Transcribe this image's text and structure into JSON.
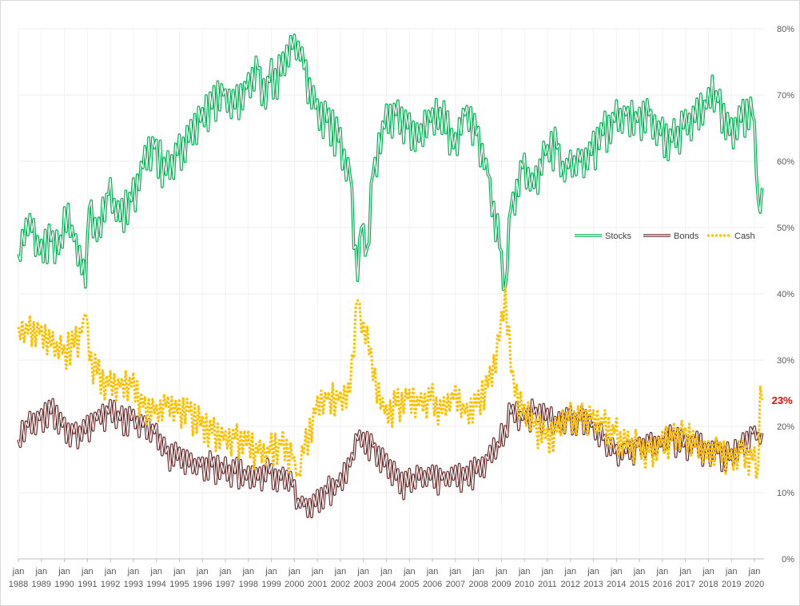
{
  "chart_data": {
    "type": "line",
    "x_start": "1988-01",
    "x_end": "2020-06",
    "x_step": "month",
    "ylim": [
      0,
      80
    ],
    "y_ticks": [
      0,
      10,
      20,
      30,
      40,
      50,
      60,
      70,
      80
    ],
    "y_tick_labels": [
      "0%",
      "10%",
      "20%",
      "30%",
      "40%",
      "50%",
      "60%",
      "70%",
      "80%"
    ],
    "y_axis_side": "right",
    "grid": true,
    "x_tick_labels": [
      {
        "month": "jan",
        "year": "1988"
      },
      {
        "month": "jan",
        "year": "1989"
      },
      {
        "month": "jan",
        "year": "1990"
      },
      {
        "month": "jan",
        "year": "1991"
      },
      {
        "month": "jan",
        "year": "1992"
      },
      {
        "month": "jan",
        "year": "1993"
      },
      {
        "month": "jan",
        "year": "1994"
      },
      {
        "month": "jan",
        "year": "1995"
      },
      {
        "month": "jan",
        "year": "1996"
      },
      {
        "month": "jan",
        "year": "1997"
      },
      {
        "month": "jan",
        "year": "1998"
      },
      {
        "month": "jan",
        "year": "1999"
      },
      {
        "month": "jan",
        "year": "2000"
      },
      {
        "month": "jan",
        "year": "2001"
      },
      {
        "month": "jan",
        "year": "2002"
      },
      {
        "month": "jan",
        "year": "2003"
      },
      {
        "month": "jan",
        "year": "2004"
      },
      {
        "month": "jan",
        "year": "2005"
      },
      {
        "month": "jan",
        "year": "2006"
      },
      {
        "month": "jan",
        "year": "2007"
      },
      {
        "month": "jan",
        "year": "2008"
      },
      {
        "month": "jan",
        "year": "2009"
      },
      {
        "month": "jan",
        "year": "2010"
      },
      {
        "month": "jan",
        "year": "2011"
      },
      {
        "month": "jan",
        "year": "2012"
      },
      {
        "month": "jan",
        "year": "2013"
      },
      {
        "month": "jan",
        "year": "2014"
      },
      {
        "month": "jan",
        "year": "2015"
      },
      {
        "month": "jan",
        "year": "2016"
      },
      {
        "month": "jan",
        "year": "2017"
      },
      {
        "month": "jan",
        "year": "2018"
      },
      {
        "month": "jan",
        "year": "2019"
      },
      {
        "month": "jan",
        "year": "2020"
      }
    ],
    "series": [
      {
        "name": "Stocks",
        "color": "#00b050",
        "style": "double",
        "anchors": [
          [
            "1988-01",
            46
          ],
          [
            "1988-07",
            52
          ],
          [
            "1988-12",
            46
          ],
          [
            "1989-06",
            48
          ],
          [
            "1989-12",
            47
          ],
          [
            "1990-01",
            53
          ],
          [
            "1990-06",
            48
          ],
          [
            "1990-10",
            43
          ],
          [
            "1990-12",
            41
          ],
          [
            "1991-02",
            53
          ],
          [
            "1991-06",
            48
          ],
          [
            "1991-12",
            55
          ],
          [
            "1992-06",
            51
          ],
          [
            "1992-12",
            54
          ],
          [
            "1993-06",
            59
          ],
          [
            "1993-12",
            62
          ],
          [
            "1994-06",
            58
          ],
          [
            "1994-12",
            61
          ],
          [
            "1995-06",
            63
          ],
          [
            "1995-12",
            66
          ],
          [
            "1996-06",
            68
          ],
          [
            "1996-12",
            70
          ],
          [
            "1997-06",
            68
          ],
          [
            "1997-12",
            71
          ],
          [
            "1998-06",
            74
          ],
          [
            "1998-10",
            68
          ],
          [
            "1998-12",
            72
          ],
          [
            "1999-06",
            73
          ],
          [
            "1999-12",
            77
          ],
          [
            "2000-03",
            78
          ],
          [
            "2000-06",
            74
          ],
          [
            "2000-12",
            68
          ],
          [
            "2001-06",
            66
          ],
          [
            "2001-12",
            63
          ],
          [
            "2002-06",
            58
          ],
          [
            "2002-10",
            42
          ],
          [
            "2002-12",
            50
          ],
          [
            "2003-03",
            47
          ],
          [
            "2003-06",
            58
          ],
          [
            "2003-12",
            65
          ],
          [
            "2004-06",
            67
          ],
          [
            "2004-12",
            65
          ],
          [
            "2005-06",
            63
          ],
          [
            "2005-12",
            66
          ],
          [
            "2006-05",
            68
          ],
          [
            "2006-12",
            62
          ],
          [
            "2007-06",
            67
          ],
          [
            "2007-12",
            64
          ],
          [
            "2008-06",
            58
          ],
          [
            "2008-12",
            47
          ],
          [
            "2009-03",
            41
          ],
          [
            "2009-06",
            53
          ],
          [
            "2009-12",
            59
          ],
          [
            "2010-06",
            56
          ],
          [
            "2010-12",
            61
          ],
          [
            "2011-06",
            62
          ],
          [
            "2011-10",
            57
          ],
          [
            "2011-12",
            59
          ],
          [
            "2012-06",
            60
          ],
          [
            "2012-12",
            61
          ],
          [
            "2013-06",
            64
          ],
          [
            "2013-12",
            66
          ],
          [
            "2014-06",
            67
          ],
          [
            "2014-12",
            66
          ],
          [
            "2015-06",
            67
          ],
          [
            "2015-12",
            64
          ],
          [
            "2016-06",
            63
          ],
          [
            "2016-12",
            65
          ],
          [
            "2017-06",
            66
          ],
          [
            "2017-12",
            68
          ],
          [
            "2018-01",
            71
          ],
          [
            "2018-06",
            69
          ],
          [
            "2018-12",
            64
          ],
          [
            "2019-06",
            66
          ],
          [
            "2019-12",
            67
          ],
          [
            "2020-01",
            66
          ],
          [
            "2020-03",
            54
          ],
          [
            "2020-05",
            56
          ]
        ]
      },
      {
        "name": "Bonds",
        "color": "#6b2a2a",
        "style": "double",
        "anchors": [
          [
            "1988-01",
            18
          ],
          [
            "1988-06",
            20
          ],
          [
            "1988-12",
            21
          ],
          [
            "1989-06",
            22
          ],
          [
            "1989-12",
            20
          ],
          [
            "1990-06",
            19
          ],
          [
            "1990-12",
            19
          ],
          [
            "1991-06",
            21
          ],
          [
            "1991-12",
            22
          ],
          [
            "1992-06",
            21
          ],
          [
            "1992-12",
            21
          ],
          [
            "1993-06",
            20
          ],
          [
            "1993-12",
            19
          ],
          [
            "1994-06",
            16
          ],
          [
            "1994-12",
            15
          ],
          [
            "1995-06",
            14
          ],
          [
            "1995-12",
            14
          ],
          [
            "1996-06",
            14
          ],
          [
            "1996-12",
            13
          ],
          [
            "1997-06",
            13
          ],
          [
            "1997-12",
            12
          ],
          [
            "1998-06",
            12
          ],
          [
            "1998-12",
            13
          ],
          [
            "1999-06",
            12
          ],
          [
            "1999-12",
            11
          ],
          [
            "2000-03",
            9
          ],
          [
            "2000-06",
            8
          ],
          [
            "2000-12",
            8
          ],
          [
            "2001-06",
            10
          ],
          [
            "2001-12",
            11
          ],
          [
            "2002-06",
            14
          ],
          [
            "2002-10",
            18
          ],
          [
            "2002-12",
            17
          ],
          [
            "2003-06",
            17
          ],
          [
            "2003-12",
            14
          ],
          [
            "2004-06",
            12
          ],
          [
            "2004-12",
            11
          ],
          [
            "2005-06",
            12
          ],
          [
            "2005-12",
            12
          ],
          [
            "2006-06",
            12
          ],
          [
            "2006-12",
            12
          ],
          [
            "2007-06",
            12
          ],
          [
            "2007-12",
            13
          ],
          [
            "2008-06",
            15
          ],
          [
            "2008-12",
            17
          ],
          [
            "2009-03",
            20
          ],
          [
            "2009-06",
            22
          ],
          [
            "2009-12",
            21
          ],
          [
            "2010-06",
            22
          ],
          [
            "2010-12",
            21
          ],
          [
            "2011-06",
            20
          ],
          [
            "2011-12",
            21
          ],
          [
            "2012-06",
            21
          ],
          [
            "2012-12",
            20
          ],
          [
            "2013-06",
            18
          ],
          [
            "2013-12",
            16
          ],
          [
            "2014-06",
            16
          ],
          [
            "2014-12",
            17
          ],
          [
            "2015-06",
            17
          ],
          [
            "2015-12",
            17
          ],
          [
            "2016-06",
            18
          ],
          [
            "2016-12",
            17
          ],
          [
            "2017-06",
            17
          ],
          [
            "2017-12",
            16
          ],
          [
            "2018-06",
            16
          ],
          [
            "2018-12",
            15
          ],
          [
            "2019-06",
            17
          ],
          [
            "2019-12",
            19
          ],
          [
            "2020-03",
            19
          ],
          [
            "2020-05",
            19
          ]
        ]
      },
      {
        "name": "Cash",
        "color": "#ffc000",
        "style": "dotted",
        "anchors": [
          [
            "1988-01",
            35
          ],
          [
            "1988-06",
            34
          ],
          [
            "1988-12",
            34
          ],
          [
            "1989-06",
            32
          ],
          [
            "1989-12",
            31
          ],
          [
            "1990-06",
            32
          ],
          [
            "1990-10",
            34
          ],
          [
            "1990-12",
            37
          ],
          [
            "1991-02",
            30
          ],
          [
            "1991-06",
            28
          ],
          [
            "1991-12",
            26
          ],
          [
            "1992-06",
            26
          ],
          [
            "1992-12",
            26
          ],
          [
            "1993-06",
            23
          ],
          [
            "1993-12",
            22
          ],
          [
            "1994-06",
            23
          ],
          [
            "1994-12",
            22
          ],
          [
            "1995-06",
            22
          ],
          [
            "1995-12",
            20
          ],
          [
            "1996-06",
            19
          ],
          [
            "1996-12",
            18
          ],
          [
            "1997-06",
            18
          ],
          [
            "1997-12",
            17
          ],
          [
            "1998-06",
            16
          ],
          [
            "1998-12",
            16
          ],
          [
            "1999-06",
            17
          ],
          [
            "1999-12",
            15
          ],
          [
            "2000-03",
            13
          ],
          [
            "2000-06",
            16
          ],
          [
            "2000-12",
            22
          ],
          [
            "2001-06",
            24
          ],
          [
            "2001-12",
            24
          ],
          [
            "2002-06",
            25
          ],
          [
            "2002-10",
            39
          ],
          [
            "2002-12",
            34
          ],
          [
            "2003-03",
            35
          ],
          [
            "2003-06",
            27
          ],
          [
            "2003-12",
            22
          ],
          [
            "2004-06",
            23
          ],
          [
            "2004-12",
            24
          ],
          [
            "2005-06",
            23
          ],
          [
            "2005-12",
            24
          ],
          [
            "2006-06",
            22
          ],
          [
            "2006-12",
            24
          ],
          [
            "2007-06",
            22
          ],
          [
            "2007-12",
            23
          ],
          [
            "2008-06",
            26
          ],
          [
            "2008-12",
            33
          ],
          [
            "2009-03",
            41
          ],
          [
            "2009-06",
            28
          ],
          [
            "2009-12",
            22
          ],
          [
            "2010-06",
            20
          ],
          [
            "2010-12",
            18
          ],
          [
            "2011-06",
            19
          ],
          [
            "2011-12",
            21
          ],
          [
            "2012-06",
            21
          ],
          [
            "2012-12",
            21
          ],
          [
            "2013-06",
            20
          ],
          [
            "2013-12",
            19
          ],
          [
            "2014-06",
            17
          ],
          [
            "2014-12",
            17
          ],
          [
            "2015-06",
            16
          ],
          [
            "2015-12",
            17
          ],
          [
            "2016-06",
            18
          ],
          [
            "2016-12",
            19
          ],
          [
            "2017-06",
            17
          ],
          [
            "2017-12",
            15
          ],
          [
            "2018-06",
            16
          ],
          [
            "2018-12",
            15
          ],
          [
            "2019-06",
            16
          ],
          [
            "2019-12",
            15
          ],
          [
            "2020-03",
            14
          ],
          [
            "2020-04",
            26
          ],
          [
            "2020-05",
            24
          ]
        ]
      }
    ],
    "legend": {
      "position": "right",
      "entries": [
        "Stocks",
        "Bonds",
        "Cash"
      ]
    },
    "annotation": {
      "text": "23%",
      "color": "#ff0000",
      "attached_series": "Cash"
    }
  }
}
